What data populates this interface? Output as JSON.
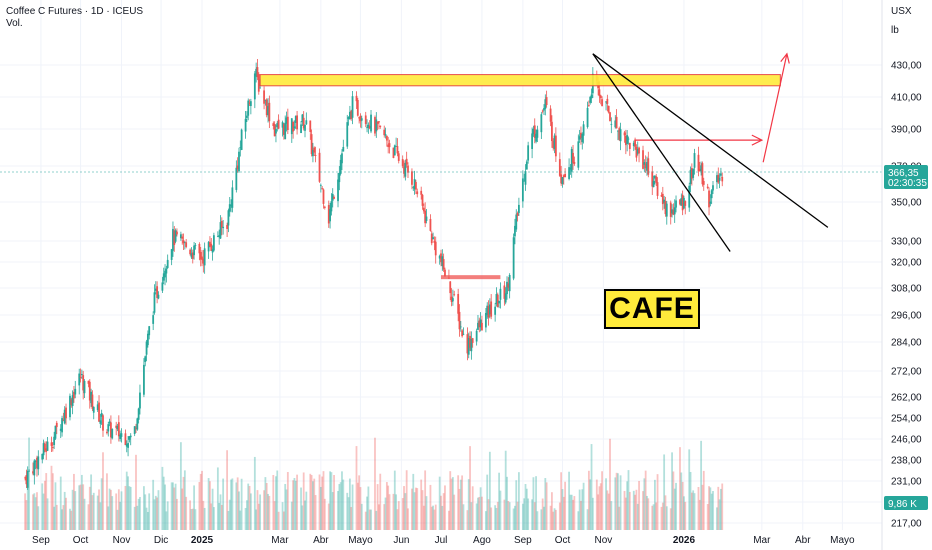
{
  "header": {
    "title": "Coffee C Futures · 1D · ICEUS",
    "volume_label": "Vol."
  },
  "scale": {
    "currency": "USX",
    "unit": "lb"
  },
  "annotation": {
    "text": "CAFE"
  },
  "colors": {
    "up": "#26a69a",
    "down": "#ef5350",
    "price_badge": "#26a69a",
    "volume_badge": "#26a69a",
    "resistance_zone": "#ffeb3b",
    "resistance_border": "#e53935",
    "support_line": "#ef5350",
    "arrow": "#f23645",
    "trendline": "#000000"
  },
  "chart_data": {
    "type": "candlestick",
    "x_ticks": [
      "Sep",
      "Oct",
      "Nov",
      "Dic",
      "2025",
      "Mar",
      "Abr",
      "Mayo",
      "Jun",
      "Jul",
      "Ago",
      "Sep",
      "Oct",
      "Nov",
      "2026",
      "Mar",
      "Abr",
      "Mayo"
    ],
    "y_ticks": [
      217,
      224,
      231,
      238,
      246,
      254,
      262,
      272,
      284,
      296,
      308,
      320,
      330,
      350,
      370,
      390,
      410,
      430
    ],
    "y_tick_labels": [
      "217,00",
      "224,00",
      "231,00",
      "238,00",
      "246,00",
      "254,00",
      "262,00",
      "272,00",
      "284,00",
      "296,00",
      "308,00",
      "320,00",
      "330,00",
      "350,00",
      "370,00",
      "390,00",
      "410,00",
      "430,00"
    ],
    "last_price": {
      "value": 366.35,
      "label": "366,35",
      "countdown": "02:30:35"
    },
    "last_volume": {
      "label": "9,86 K"
    },
    "price_path": [
      {
        "date": "2024-08-20",
        "close": 232
      },
      {
        "date": "2024-09-10",
        "close": 246
      },
      {
        "date": "2024-10-01",
        "close": 270
      },
      {
        "date": "2024-10-20",
        "close": 250
      },
      {
        "date": "2024-11-10",
        "close": 246
      },
      {
        "date": "2024-11-25",
        "close": 300
      },
      {
        "date": "2024-12-10",
        "close": 332
      },
      {
        "date": "2025-01-01",
        "close": 322
      },
      {
        "date": "2025-01-20",
        "close": 340
      },
      {
        "date": "2025-02-10",
        "close": 425
      },
      {
        "date": "2025-02-25",
        "close": 390
      },
      {
        "date": "2025-03-20",
        "close": 395
      },
      {
        "date": "2025-04-07",
        "close": 342
      },
      {
        "date": "2025-04-25",
        "close": 405
      },
      {
        "date": "2025-05-20",
        "close": 385
      },
      {
        "date": "2025-06-10",
        "close": 362
      },
      {
        "date": "2025-06-25",
        "close": 330
      },
      {
        "date": "2025-07-07",
        "close": 310
      },
      {
        "date": "2025-07-20",
        "close": 282
      },
      {
        "date": "2025-08-05",
        "close": 296
      },
      {
        "date": "2025-08-20",
        "close": 308
      },
      {
        "date": "2025-09-05",
        "close": 380
      },
      {
        "date": "2025-09-18",
        "close": 405
      },
      {
        "date": "2025-09-30",
        "close": 365
      },
      {
        "date": "2025-10-15",
        "close": 382
      },
      {
        "date": "2025-10-24",
        "close": 420
      },
      {
        "date": "2025-11-10",
        "close": 392
      },
      {
        "date": "2025-11-30",
        "close": 375
      },
      {
        "date": "2025-12-20",
        "close": 345
      },
      {
        "date": "2026-01-01",
        "close": 350
      },
      {
        "date": "2026-01-10",
        "close": 375
      },
      {
        "date": "2026-01-20",
        "close": 352
      },
      {
        "date": "2026-01-30",
        "close": 366
      }
    ],
    "drawings": {
      "resistance_zone": {
        "from": "2025-02-14",
        "to": "2026-03-15",
        "low": 417,
        "high": 424
      },
      "support_line": {
        "from": "2025-07-01",
        "to": "2025-08-15",
        "value": 313
      },
      "horizontal_target": {
        "from": "2025-11-25",
        "to": "2026-03-01",
        "value": 384
      },
      "trendline_outer": [
        {
          "date": "2025-10-24",
          "value": 437
        },
        {
          "date": "2026-04-20",
          "value": 337
        }
      ],
      "trendline_inner": [
        {
          "date": "2025-10-24",
          "value": 437
        },
        {
          "date": "2026-02-05",
          "value": 325
        }
      ],
      "breakout_arrow": [
        {
          "date": "2026-03-02",
          "value": 372
        },
        {
          "date": "2026-03-20",
          "value": 437
        }
      ]
    },
    "grid": true,
    "legend": "none"
  }
}
